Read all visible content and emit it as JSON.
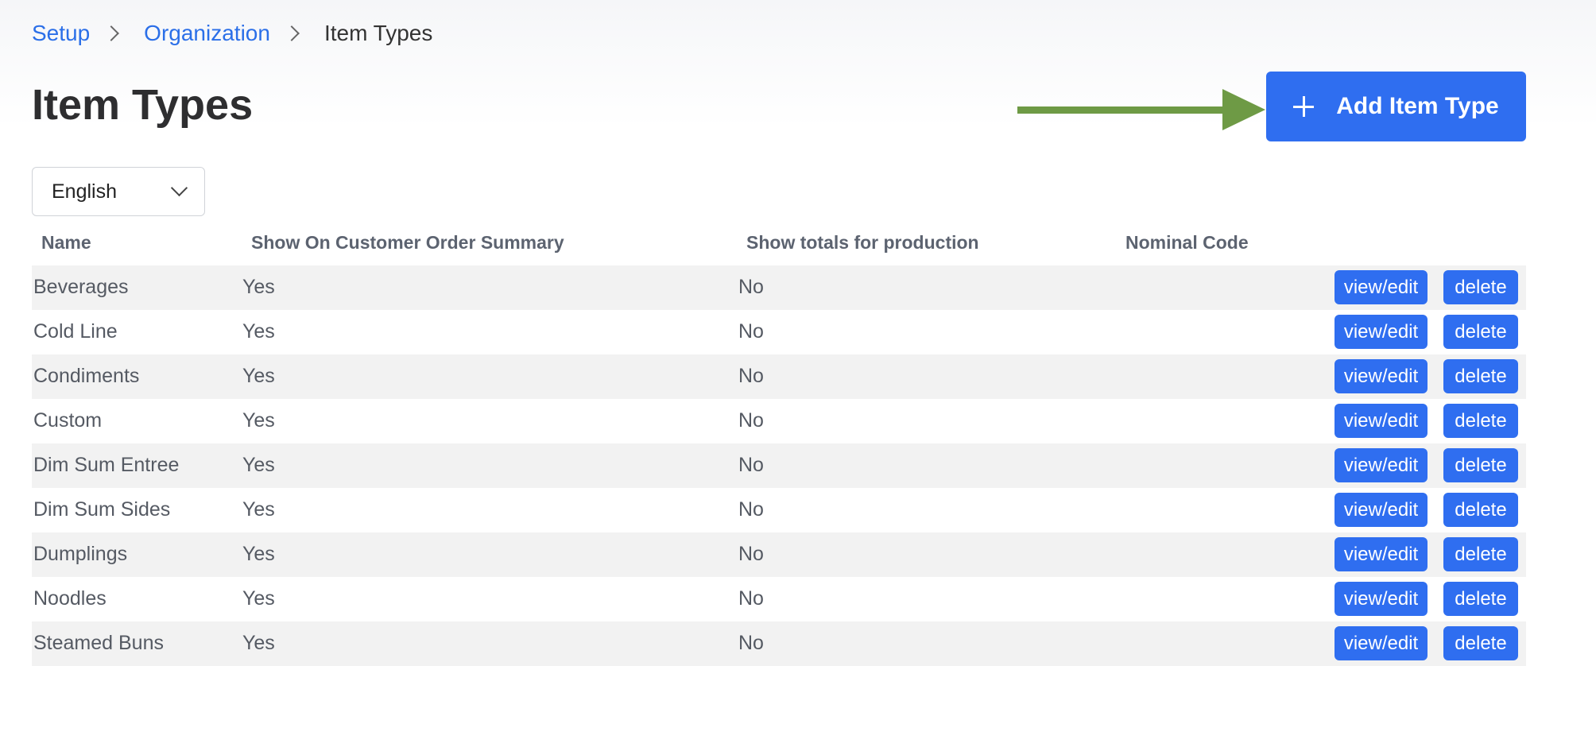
{
  "breadcrumb": {
    "items": [
      "Setup",
      "Organization"
    ],
    "current": "Item Types"
  },
  "page": {
    "title": "Item Types",
    "add_button_label": "Add Item Type"
  },
  "language_select": {
    "selected": "English"
  },
  "colors": {
    "accent": "#2f6ef0",
    "link": "#2b6fe8",
    "arrow": "#6e9a45"
  },
  "table": {
    "headers": [
      "Name",
      "Show On Customer Order Summary",
      "Show totals for production",
      "Nominal Code"
    ],
    "action_labels": {
      "edit": "view/edit",
      "delete": "delete"
    },
    "rows": [
      {
        "name": "Beverages",
        "show_on_summary": "Yes",
        "show_totals": "No",
        "nominal_code": ""
      },
      {
        "name": "Cold Line",
        "show_on_summary": "Yes",
        "show_totals": "No",
        "nominal_code": ""
      },
      {
        "name": "Condiments",
        "show_on_summary": "Yes",
        "show_totals": "No",
        "nominal_code": ""
      },
      {
        "name": "Custom",
        "show_on_summary": "Yes",
        "show_totals": "No",
        "nominal_code": ""
      },
      {
        "name": "Dim Sum Entree",
        "show_on_summary": "Yes",
        "show_totals": "No",
        "nominal_code": ""
      },
      {
        "name": "Dim Sum Sides",
        "show_on_summary": "Yes",
        "show_totals": "No",
        "nominal_code": ""
      },
      {
        "name": "Dumplings",
        "show_on_summary": "Yes",
        "show_totals": "No",
        "nominal_code": ""
      },
      {
        "name": "Noodles",
        "show_on_summary": "Yes",
        "show_totals": "No",
        "nominal_code": ""
      },
      {
        "name": "Steamed Buns",
        "show_on_summary": "Yes",
        "show_totals": "No",
        "nominal_code": ""
      }
    ]
  }
}
